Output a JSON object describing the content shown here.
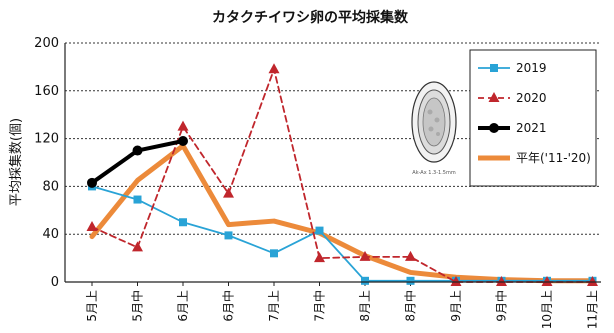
{
  "chart_data": {
    "type": "line",
    "title": "カタクチイワシ卵の平均採集数",
    "ylabel": "平均採集数(個)",
    "xlabel": "",
    "ylim": [
      0,
      200
    ],
    "yticks": [
      0,
      40,
      80,
      120,
      160,
      200
    ],
    "grid": true,
    "legend_position": "top-right",
    "categories": [
      "5月上",
      "5月中",
      "6月上",
      "6月中",
      "7月上",
      "7月中",
      "8月上",
      "8月中",
      "9月上",
      "9月中",
      "10月上",
      "11月上"
    ],
    "series": [
      {
        "name": "2019",
        "color": "#29a3d6",
        "style": "solid-square",
        "values": [
          80,
          69,
          50,
          39,
          24,
          43,
          1,
          1,
          1,
          1,
          1,
          1
        ]
      },
      {
        "name": "2020",
        "color": "#c0262c",
        "style": "dashed-triangle",
        "values": [
          46,
          29,
          130,
          74,
          178,
          20,
          21,
          21,
          0,
          0,
          0,
          0
        ]
      },
      {
        "name": "2021",
        "color": "#000000",
        "style": "solid-circle",
        "values": [
          83,
          110,
          118,
          null,
          null,
          null,
          null,
          null,
          null,
          null,
          null,
          null
        ]
      },
      {
        "name": "平年('11-'20)",
        "color": "#ec8a3a",
        "style": "thick",
        "values": [
          38,
          85,
          114,
          48,
          51,
          41,
          22,
          8,
          4,
          2,
          1,
          1
        ]
      }
    ],
    "inset_caption": "Ak-Ax  1.3-1.5mm"
  }
}
